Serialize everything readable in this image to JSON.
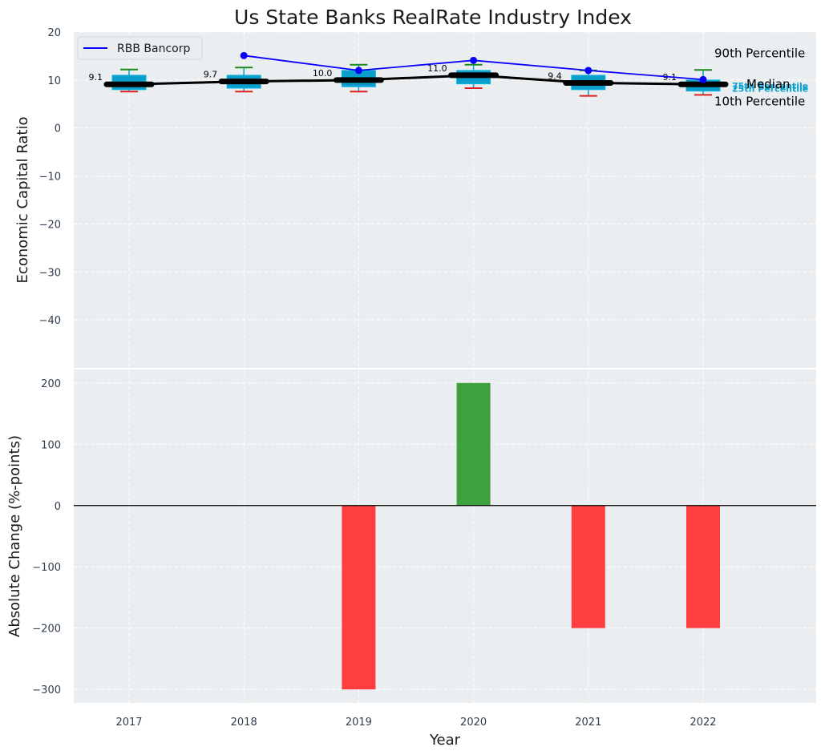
{
  "title": "Us State Banks RealRate Industry Index",
  "colors": {
    "panel_bg": "#eaeef0",
    "grid": "#ffffff",
    "box": "#0a9fcb",
    "box_edge": "#11b5e0",
    "median_line": "#000000",
    "p90_cap": "#1a8a1a",
    "p10_cap": "#e01f1f",
    "company_line": "#0a00ff",
    "bar_positive": "#2e9a2e",
    "bar_negative": "#ff3030",
    "quartile_text": "#0aa3d0"
  },
  "chart_data": [
    {
      "type": "box",
      "ylabel": "Economic Capital Ratio",
      "ylim": [
        -50,
        20
      ],
      "yticks": [
        20,
        10,
        0,
        -10,
        -20,
        -30,
        -40
      ],
      "ytick_labels": [
        "20",
        "10",
        "0",
        "−10",
        "−20",
        "−30",
        "−40"
      ],
      "categories": [
        "2017",
        "2018",
        "2019",
        "2020",
        "2021",
        "2022"
      ],
      "p90": [
        12.2,
        12.6,
        13.2,
        13.2,
        12.0,
        12.1
      ],
      "q3": [
        11.0,
        11.0,
        12.0,
        12.0,
        11.0,
        10.0
      ],
      "median": [
        9.1,
        9.7,
        10.0,
        11.0,
        9.4,
        9.1
      ],
      "median_labels": [
        "9.1",
        "9.7",
        "10.0",
        "11.0",
        "9.4",
        "9.1"
      ],
      "q1": [
        8.0,
        8.3,
        8.6,
        9.2,
        8.0,
        7.7
      ],
      "p10": [
        7.6,
        7.6,
        7.6,
        8.3,
        6.7,
        6.9
      ],
      "company": {
        "name": "RBB Bancorp",
        "x_index": [
          1,
          2,
          3,
          4,
          5
        ],
        "values": [
          15.1,
          12.0,
          14.1,
          12.0,
          10.1
        ]
      },
      "legend": [
        "RBB Bancorp"
      ],
      "annotations": {
        "p90": "90th Percentile",
        "q3": "75th Percentile",
        "median": "Median",
        "q1": "25th Percentile",
        "p10": "10th Percentile"
      }
    },
    {
      "type": "bar",
      "ylabel": "Absolute Change (%-points)",
      "xlabel": "Year",
      "ylim": [
        -322,
        222
      ],
      "yticks": [
        200,
        100,
        0,
        -100,
        -200,
        -300
      ],
      "ytick_labels": [
        "200",
        "100",
        "0",
        "−100",
        "−200",
        "−300"
      ],
      "categories": [
        "2017",
        "2018",
        "2019",
        "2020",
        "2021",
        "2022"
      ],
      "values": [
        0,
        0,
        -300,
        200,
        -200,
        -200
      ]
    }
  ]
}
